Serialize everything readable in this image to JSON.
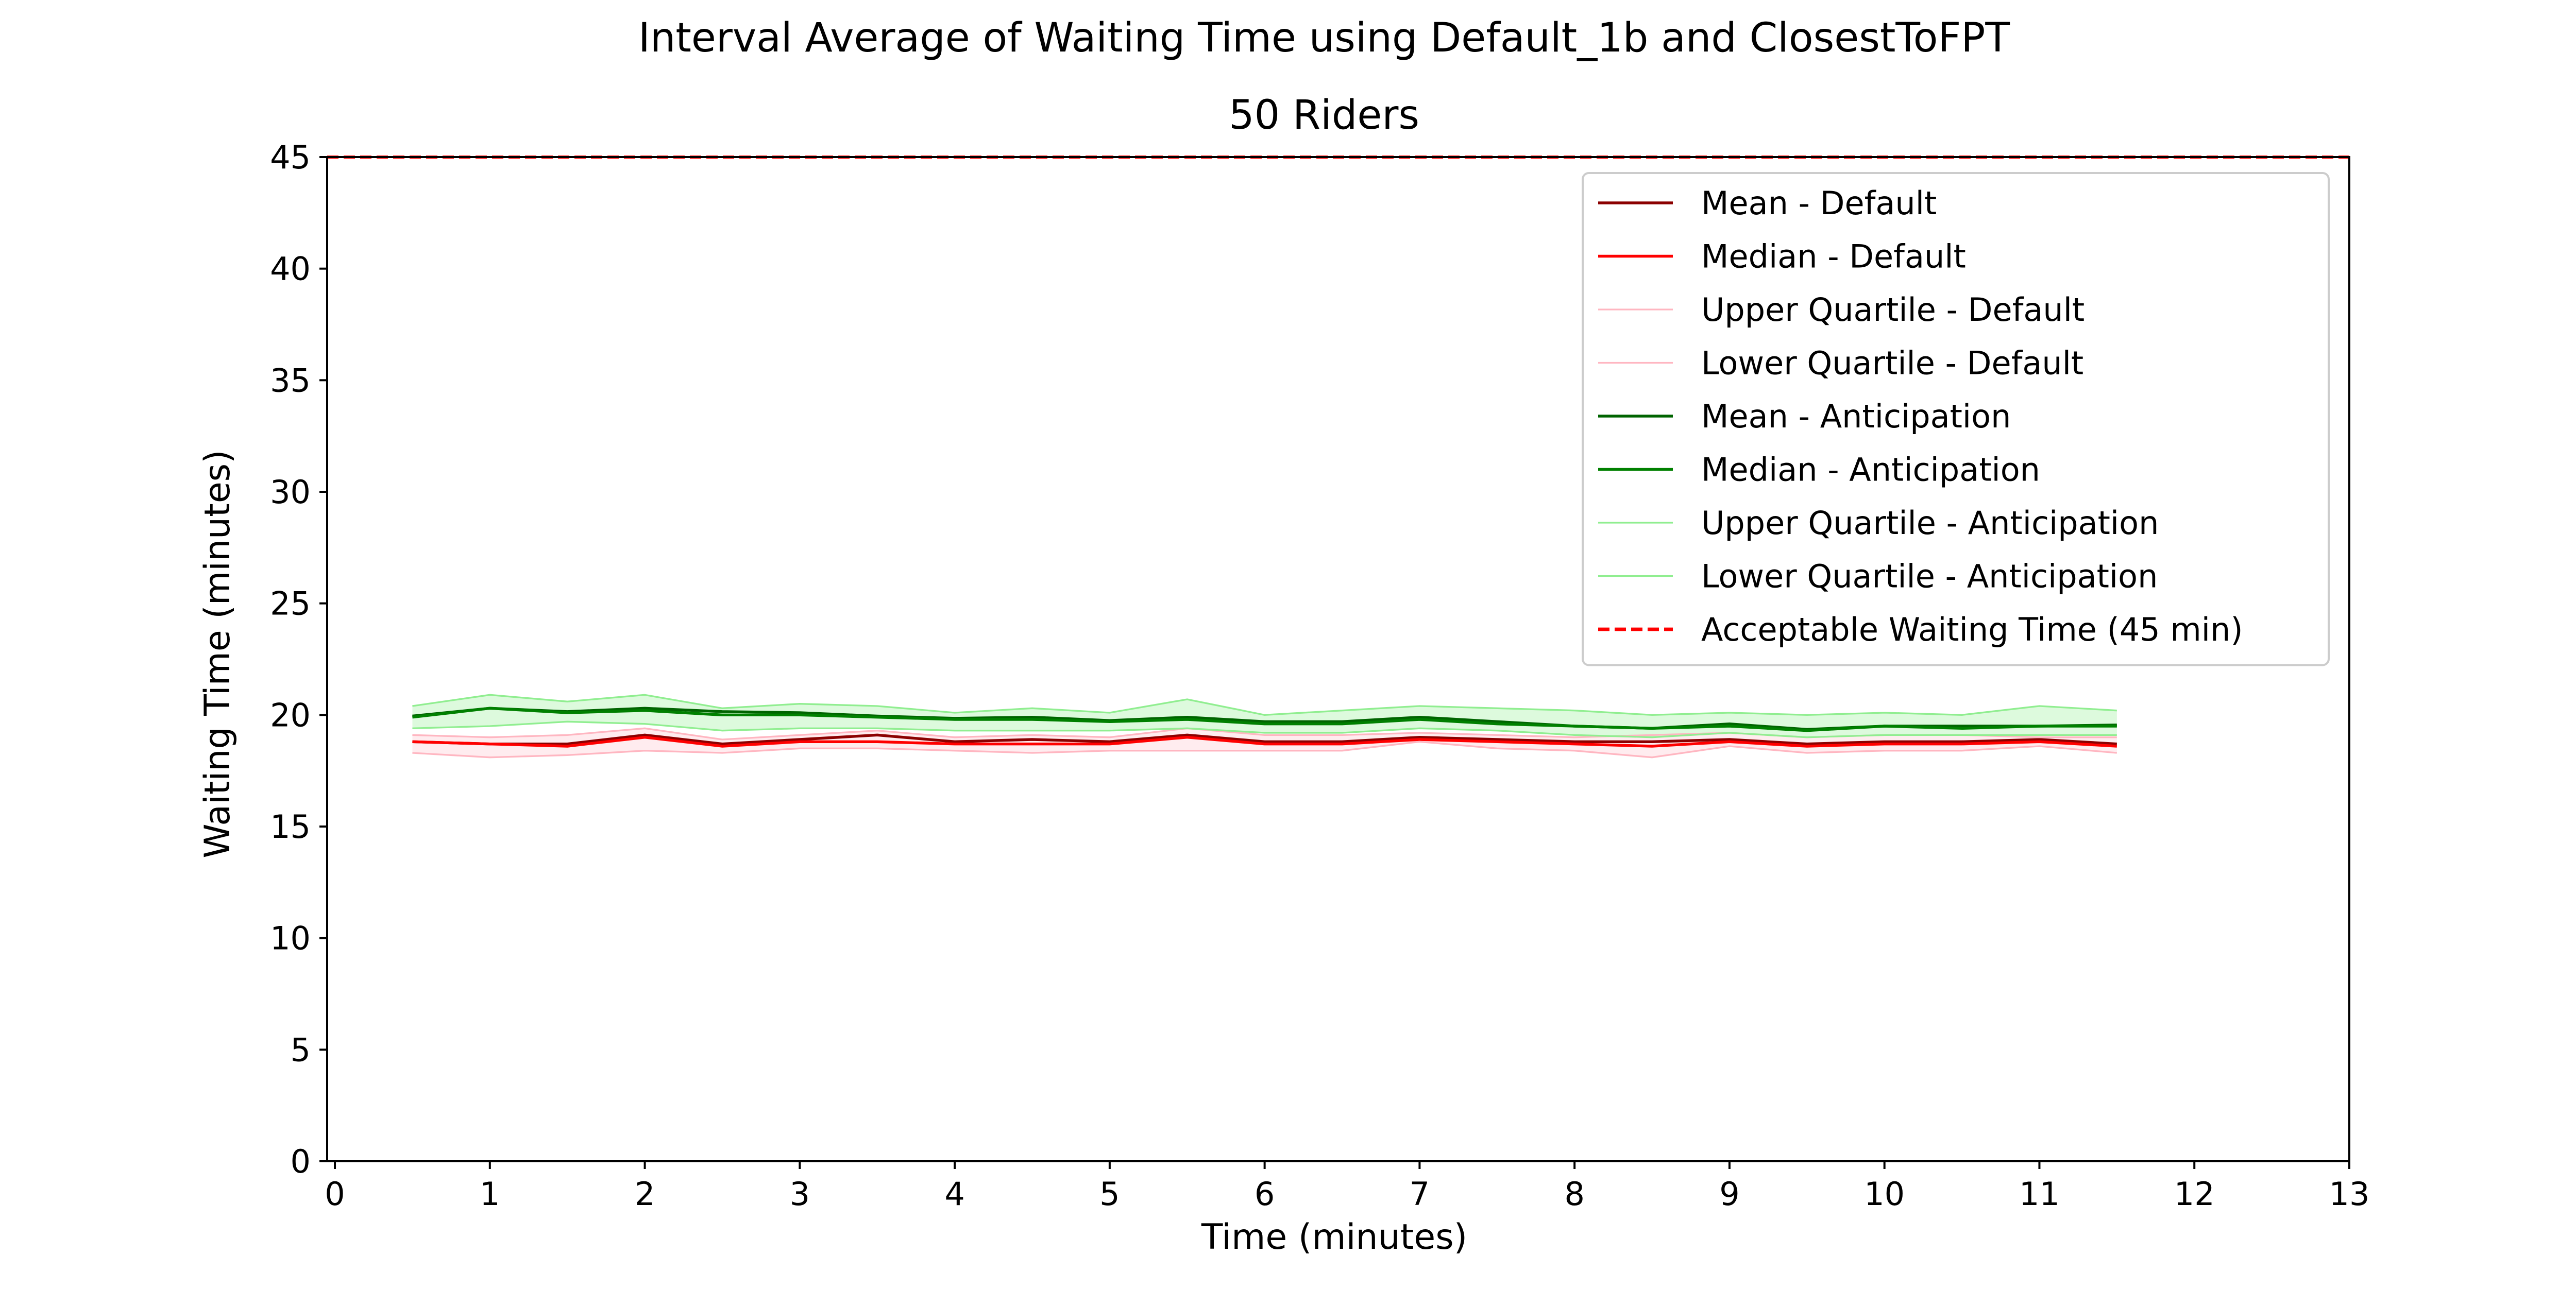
{
  "chart_data": {
    "type": "line",
    "title": "Interval Average of Waiting Time using Default_1b and ClosestToFPT",
    "subtitle": "50 Riders",
    "xlabel": "Time (minutes)",
    "ylabel": "Waiting Time (minutes)",
    "xlim": [
      -0.05,
      13
    ],
    "ylim": [
      0,
      45
    ],
    "xticks": [
      0,
      1,
      2,
      3,
      4,
      5,
      6,
      7,
      8,
      9,
      10,
      11,
      12,
      13
    ],
    "yticks": [
      0,
      5,
      10,
      15,
      20,
      25,
      30,
      35,
      40,
      45
    ],
    "grid": false,
    "legend_position": "top-right",
    "x": [
      0.5,
      1,
      1.5,
      2,
      2.5,
      3,
      3.5,
      4,
      4.5,
      5,
      5.5,
      6,
      6.5,
      7,
      7.5,
      8,
      8.5,
      9,
      9.5,
      10,
      10.5,
      11,
      11.5
    ],
    "series": [
      {
        "name": "Mean - Default",
        "color": "#8b0000",
        "width": 1.3,
        "values": [
          18.8,
          18.7,
          18.7,
          19.1,
          18.7,
          18.9,
          19.1,
          18.8,
          18.9,
          18.8,
          19.1,
          18.8,
          18.8,
          19.0,
          18.9,
          18.8,
          18.8,
          18.9,
          18.7,
          18.8,
          18.8,
          18.9,
          18.7
        ]
      },
      {
        "name": "Median - Default",
        "color": "#ff0000",
        "width": 1.3,
        "values": [
          18.8,
          18.7,
          18.6,
          19.0,
          18.6,
          18.8,
          18.8,
          18.7,
          18.7,
          18.7,
          19.0,
          18.7,
          18.7,
          18.9,
          18.8,
          18.7,
          18.6,
          18.8,
          18.6,
          18.7,
          18.7,
          18.8,
          18.6
        ]
      },
      {
        "name": "Upper Quartile - Default",
        "color": "#ffb6c1",
        "width": 0.8,
        "values": [
          19.1,
          19.0,
          19.1,
          19.4,
          18.9,
          19.1,
          19.3,
          19.0,
          19.1,
          19.0,
          19.4,
          19.1,
          19.1,
          19.2,
          19.1,
          19.0,
          19.1,
          19.2,
          19.0,
          19.1,
          19.1,
          19.0,
          19.0
        ]
      },
      {
        "name": "Lower Quartile - Default",
        "color": "#ffb6c1",
        "width": 0.8,
        "values": [
          18.3,
          18.1,
          18.2,
          18.4,
          18.3,
          18.5,
          18.5,
          18.4,
          18.3,
          18.4,
          18.4,
          18.4,
          18.4,
          18.8,
          18.5,
          18.4,
          18.1,
          18.6,
          18.3,
          18.4,
          18.4,
          18.6,
          18.3
        ]
      },
      {
        "name": "Mean - Anticipation",
        "color": "#006400",
        "width": 1.3,
        "values": [
          19.95,
          20.3,
          20.15,
          20.3,
          20.15,
          20.1,
          19.95,
          19.85,
          19.9,
          19.75,
          19.9,
          19.7,
          19.7,
          19.9,
          19.7,
          19.5,
          19.4,
          19.6,
          19.35,
          19.5,
          19.5,
          19.5,
          19.55
        ]
      },
      {
        "name": "Median - Anticipation",
        "color": "#008000",
        "width": 1.3,
        "values": [
          19.9,
          20.3,
          20.1,
          20.2,
          20.0,
          20.0,
          19.9,
          19.8,
          19.8,
          19.7,
          19.8,
          19.6,
          19.6,
          19.8,
          19.6,
          19.5,
          19.4,
          19.5,
          19.3,
          19.5,
          19.4,
          19.5,
          19.5
        ]
      },
      {
        "name": "Upper Quartile - Anticipation",
        "color": "#90ee90",
        "width": 0.8,
        "values": [
          20.4,
          20.9,
          20.6,
          20.9,
          20.3,
          20.5,
          20.4,
          20.1,
          20.3,
          20.1,
          20.7,
          20.0,
          20.2,
          20.4,
          20.3,
          20.2,
          20.0,
          20.1,
          20.0,
          20.1,
          20.0,
          20.4,
          20.2
        ]
      },
      {
        "name": "Lower Quartile - Anticipation",
        "color": "#90ee90",
        "width": 0.8,
        "values": [
          19.4,
          19.5,
          19.7,
          19.6,
          19.3,
          19.4,
          19.4,
          19.3,
          19.3,
          19.3,
          19.4,
          19.2,
          19.2,
          19.4,
          19.3,
          19.1,
          19.0,
          19.2,
          19.0,
          19.1,
          19.1,
          19.1,
          19.1
        ]
      }
    ],
    "bands": [
      {
        "upper": "Upper Quartile - Default",
        "lower": "Lower Quartile - Default",
        "color": "#ffc0cb",
        "opacity": 0.3
      },
      {
        "upper": "Upper Quartile - Anticipation",
        "lower": "Lower Quartile - Anticipation",
        "color": "#90ee90",
        "opacity": 0.3
      }
    ],
    "reference_lines": [
      {
        "name": "Acceptable Waiting Time (45 min)",
        "y": 45,
        "color": "#ff0000",
        "dash": true
      }
    ]
  }
}
